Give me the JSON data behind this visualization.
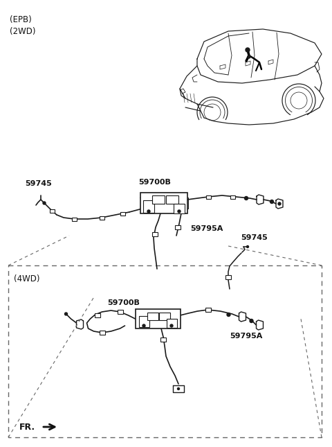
{
  "background_color": "#ffffff",
  "line_color": "#1a1a1a",
  "text_color": "#111111",
  "dashed_box_color": "#666666",
  "fig_width": 4.8,
  "fig_height": 6.45,
  "dpi": 100,
  "labels": {
    "epb_2wd": "(EPB)\n(2WD)",
    "4wd": "(4WD)",
    "fr": "FR.",
    "59745_top": "59745",
    "59700B_top": "59700B",
    "59795A_top": "59795A",
    "59745_mid": "59745",
    "59700B_bot": "59700B",
    "59795A_bot": "59795A"
  }
}
